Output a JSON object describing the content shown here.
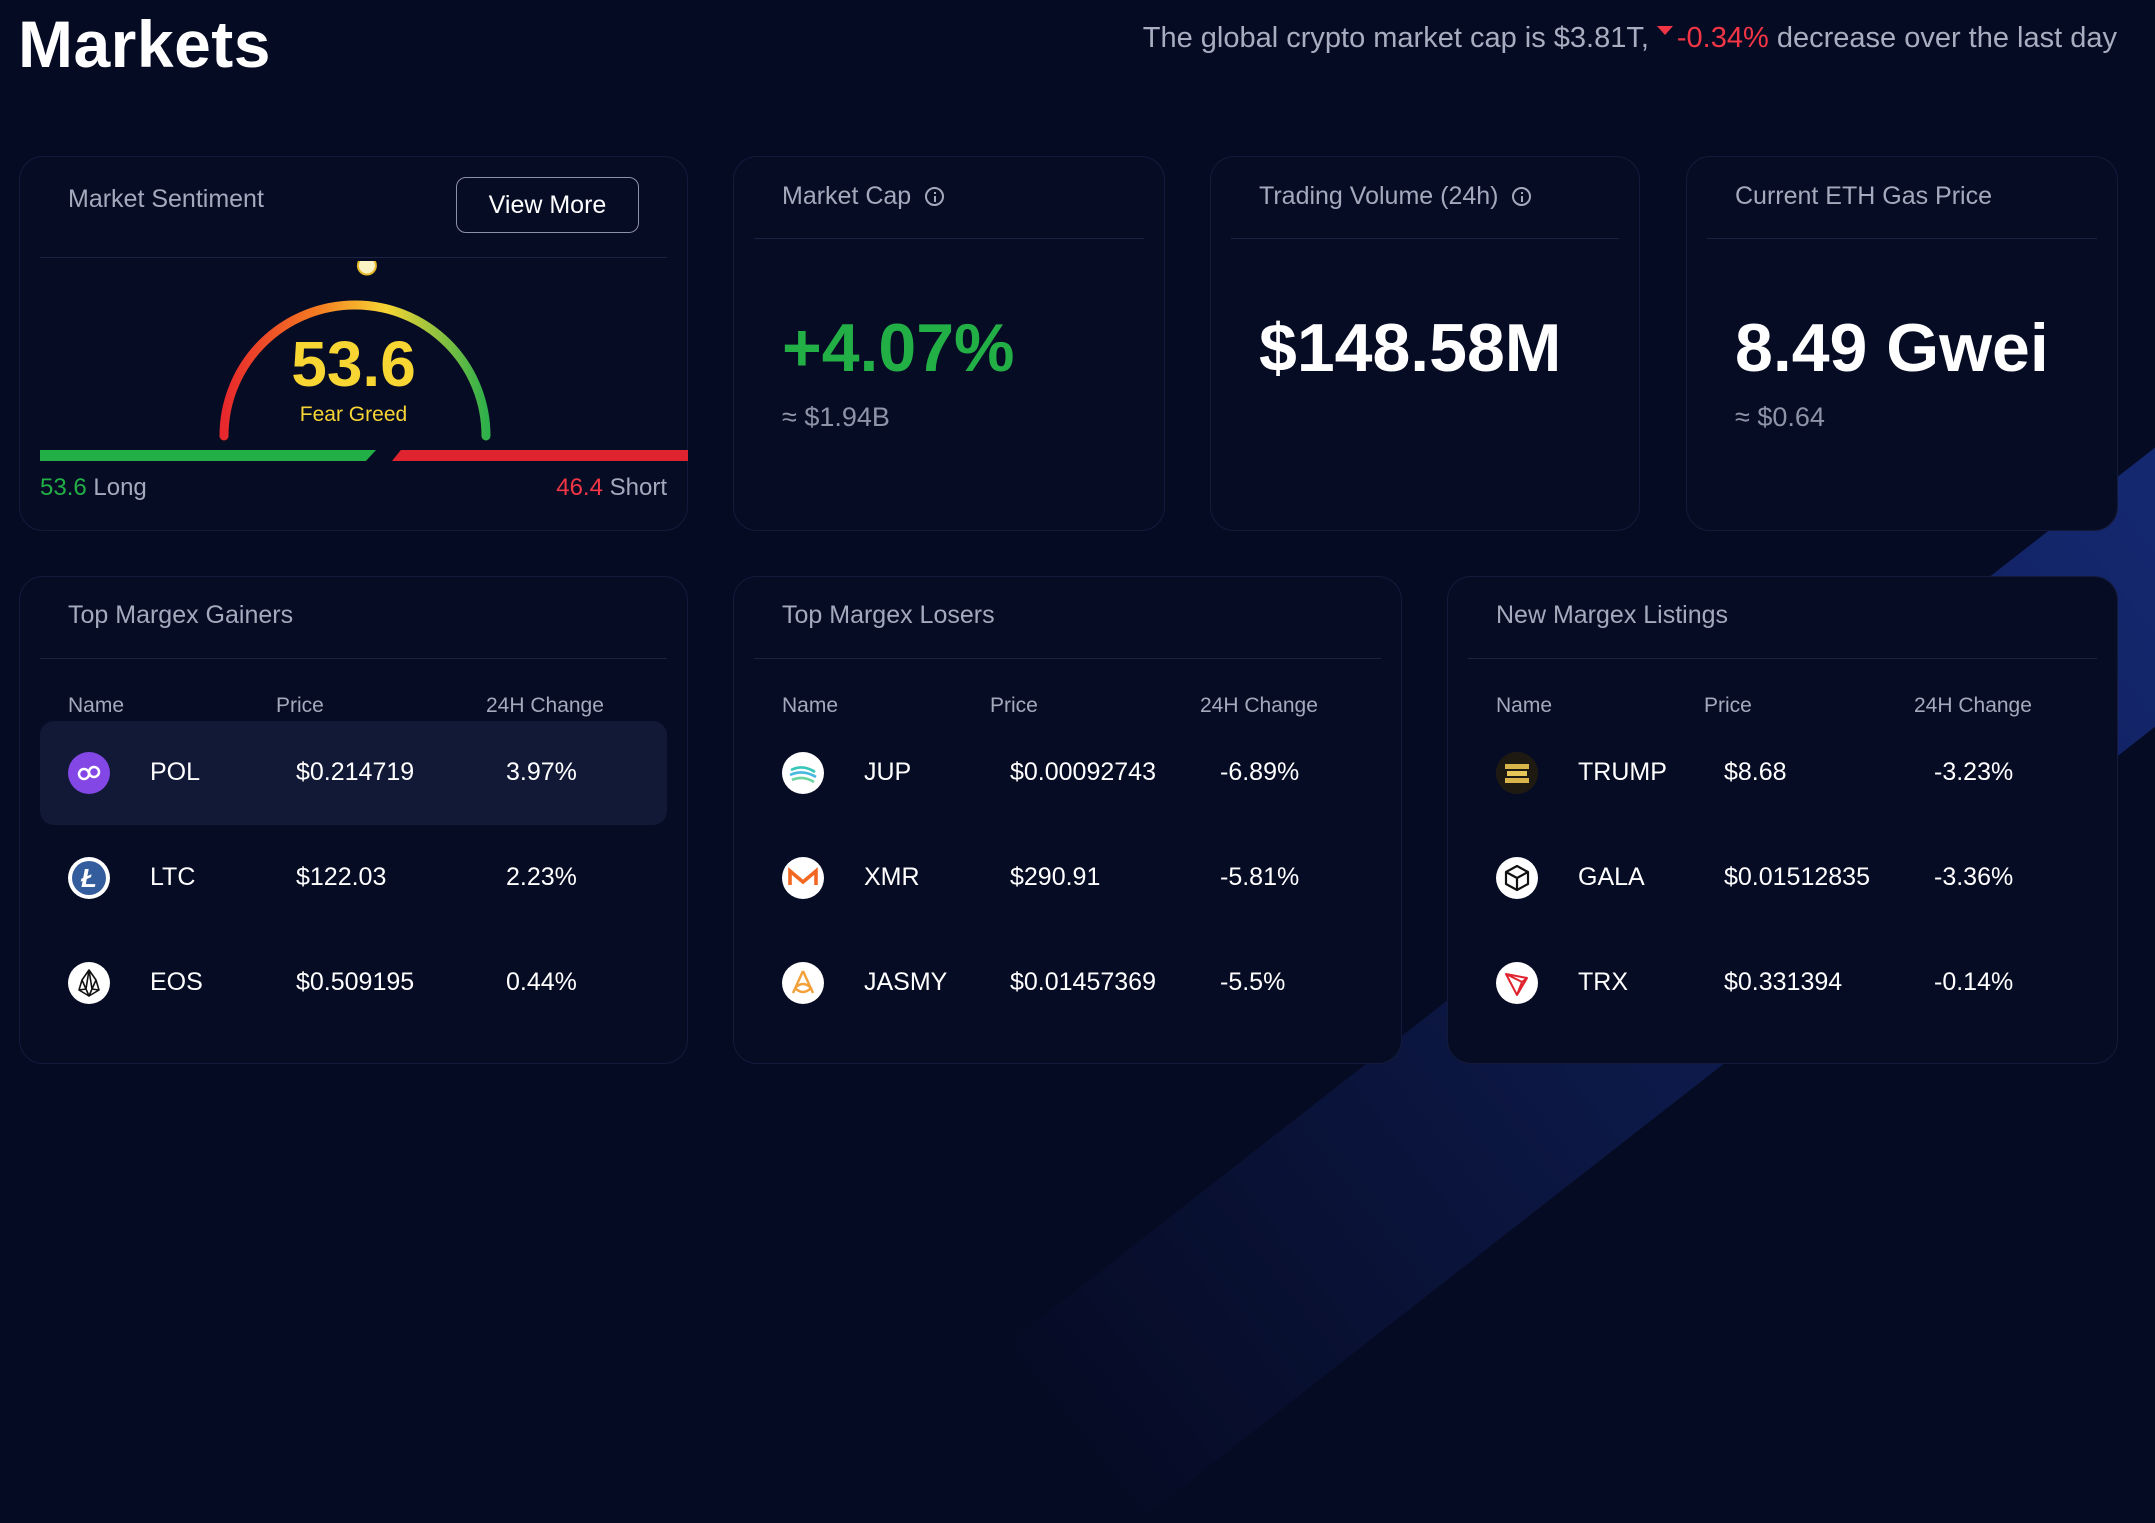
{
  "page": {
    "title": "Markets"
  },
  "headline": {
    "prefix": "The global crypto market cap is $3.81T,",
    "change": "-0.34%",
    "suffix": "decrease over the last day"
  },
  "sentiment": {
    "title": "Market Sentiment",
    "button_label": "View More",
    "value": "53.6",
    "value_fraction": 0.536,
    "label": "Fear Greed",
    "long_value": "53.6",
    "long_label": "Long",
    "short_value": "46.4",
    "short_label": "Short"
  },
  "market_cap": {
    "title": "Market Cap",
    "value": "+4.07%",
    "sub": "≈ $1.94B"
  },
  "trading_volume": {
    "title": "Trading Volume (24h)",
    "value": "$148.58M"
  },
  "gas_price": {
    "title": "Current ETH Gas Price",
    "value": "8.49 Gwei",
    "sub": "≈ $0.64"
  },
  "columns": {
    "name": "Name",
    "price": "Price",
    "change": "24H Change"
  },
  "gainers": {
    "title": "Top Margex Gainers",
    "rows": [
      {
        "symbol": "POL",
        "price": "$0.214719",
        "change": "3.97%",
        "icon": "pol-icon"
      },
      {
        "symbol": "LTC",
        "price": "$122.03",
        "change": "2.23%",
        "icon": "ltc-icon"
      },
      {
        "symbol": "EOS",
        "price": "$0.509195",
        "change": "0.44%",
        "icon": "eos-icon"
      }
    ]
  },
  "losers": {
    "title": "Top Margex Losers",
    "rows": [
      {
        "symbol": "JUP",
        "price": "$0.00092743",
        "change": "-6.89%",
        "icon": "jup-icon"
      },
      {
        "symbol": "XMR",
        "price": "$290.91",
        "change": "-5.81%",
        "icon": "xmr-icon"
      },
      {
        "symbol": "JASMY",
        "price": "$0.01457369",
        "change": "-5.5%",
        "icon": "jasmy-icon"
      }
    ]
  },
  "listings": {
    "title": "New Margex Listings",
    "rows": [
      {
        "symbol": "TRUMP",
        "price": "$8.68",
        "change": "-3.23%",
        "icon": "trump-icon"
      },
      {
        "symbol": "GALA",
        "price": "$0.01512835",
        "change": "-3.36%",
        "icon": "gala-icon"
      },
      {
        "symbol": "TRX",
        "price": "$0.331394",
        "change": "-0.14%",
        "icon": "trx-icon"
      }
    ]
  },
  "colors": {
    "positive": "#22b046",
    "negative": "#f23645",
    "gauge_value": "#f7d533",
    "background": "#060b24"
  }
}
